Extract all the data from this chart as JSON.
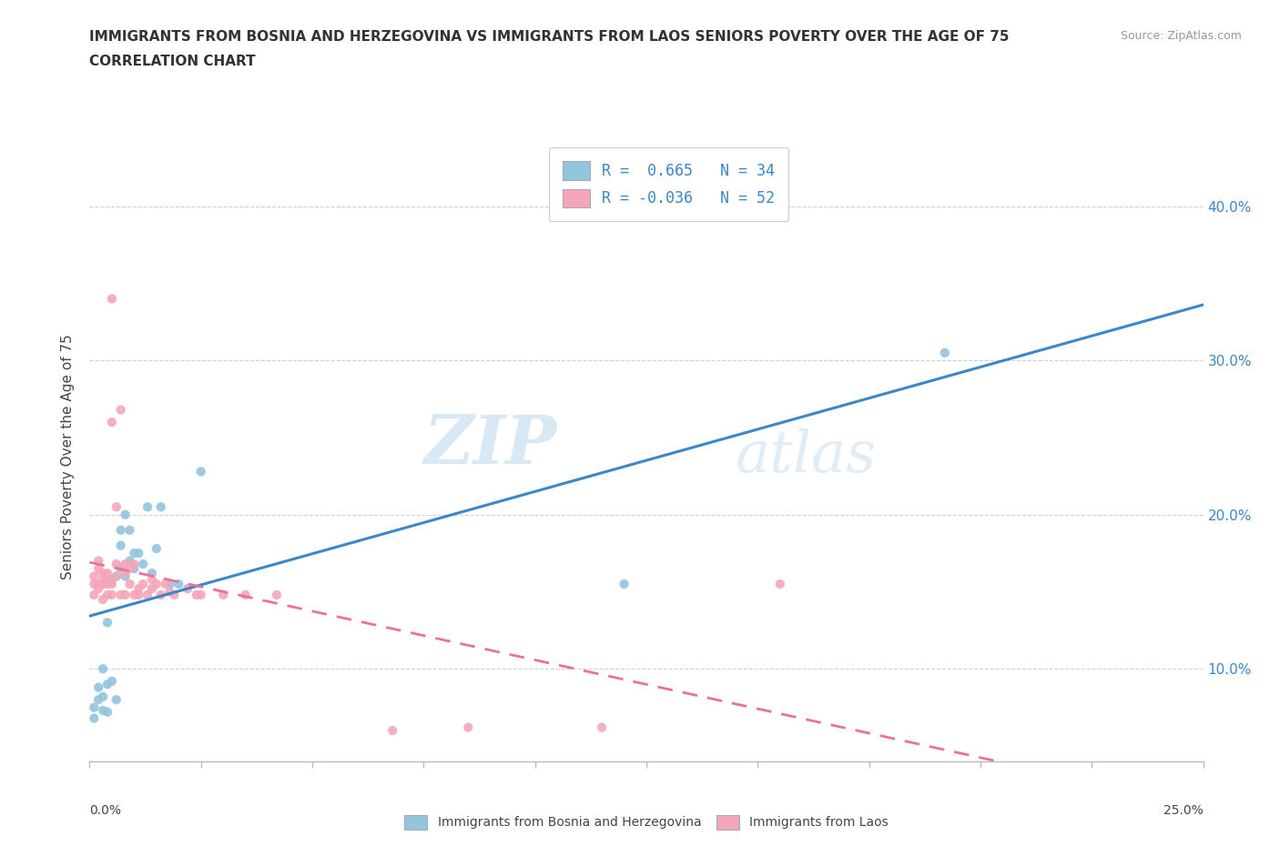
{
  "title_line1": "IMMIGRANTS FROM BOSNIA AND HERZEGOVINA VS IMMIGRANTS FROM LAOS SENIORS POVERTY OVER THE AGE OF 75",
  "title_line2": "CORRELATION CHART",
  "source": "Source: ZipAtlas.com",
  "ylabel": "Seniors Poverty Over the Age of 75",
  "xlim": [
    0.0,
    0.25
  ],
  "ylim": [
    0.04,
    0.435
  ],
  "ytick_vals": [
    0.1,
    0.2,
    0.3,
    0.4
  ],
  "color_bosnia": "#92c5de",
  "color_laos": "#f4a6b8",
  "color_bosnia_line": "#3a88c8",
  "color_laos_line": "#e8729a",
  "color_ytick": "#3a88c8",
  "watermark_zip": "ZIP",
  "watermark_atlas": "atlas",
  "bosnia_scatter": [
    [
      0.001,
      0.075
    ],
    [
      0.001,
      0.068
    ],
    [
      0.002,
      0.08
    ],
    [
      0.002,
      0.088
    ],
    [
      0.003,
      0.073
    ],
    [
      0.003,
      0.082
    ],
    [
      0.003,
      0.1
    ],
    [
      0.004,
      0.072
    ],
    [
      0.004,
      0.09
    ],
    [
      0.004,
      0.13
    ],
    [
      0.005,
      0.158
    ],
    [
      0.005,
      0.092
    ],
    [
      0.006,
      0.08
    ],
    [
      0.006,
      0.16
    ],
    [
      0.007,
      0.18
    ],
    [
      0.007,
      0.165
    ],
    [
      0.007,
      0.19
    ],
    [
      0.008,
      0.16
    ],
    [
      0.008,
      0.2
    ],
    [
      0.009,
      0.17
    ],
    [
      0.009,
      0.19
    ],
    [
      0.01,
      0.175
    ],
    [
      0.01,
      0.165
    ],
    [
      0.011,
      0.175
    ],
    [
      0.012,
      0.168
    ],
    [
      0.013,
      0.205
    ],
    [
      0.014,
      0.162
    ],
    [
      0.015,
      0.178
    ],
    [
      0.016,
      0.205
    ],
    [
      0.018,
      0.155
    ],
    [
      0.02,
      0.155
    ],
    [
      0.025,
      0.228
    ],
    [
      0.12,
      0.155
    ],
    [
      0.192,
      0.305
    ]
  ],
  "laos_scatter": [
    [
      0.001,
      0.155
    ],
    [
      0.001,
      0.148
    ],
    [
      0.001,
      0.16
    ],
    [
      0.002,
      0.155
    ],
    [
      0.002,
      0.152
    ],
    [
      0.002,
      0.165
    ],
    [
      0.002,
      0.17
    ],
    [
      0.003,
      0.145
    ],
    [
      0.003,
      0.158
    ],
    [
      0.003,
      0.162
    ],
    [
      0.003,
      0.155
    ],
    [
      0.004,
      0.148
    ],
    [
      0.004,
      0.158
    ],
    [
      0.004,
      0.162
    ],
    [
      0.004,
      0.155
    ],
    [
      0.005,
      0.155
    ],
    [
      0.005,
      0.148
    ],
    [
      0.005,
      0.26
    ],
    [
      0.005,
      0.34
    ],
    [
      0.006,
      0.16
    ],
    [
      0.006,
      0.168
    ],
    [
      0.006,
      0.205
    ],
    [
      0.007,
      0.148
    ],
    [
      0.007,
      0.268
    ],
    [
      0.008,
      0.162
    ],
    [
      0.008,
      0.148
    ],
    [
      0.008,
      0.168
    ],
    [
      0.009,
      0.165
    ],
    [
      0.009,
      0.155
    ],
    [
      0.01,
      0.148
    ],
    [
      0.01,
      0.168
    ],
    [
      0.011,
      0.148
    ],
    [
      0.011,
      0.152
    ],
    [
      0.012,
      0.155
    ],
    [
      0.013,
      0.148
    ],
    [
      0.014,
      0.158
    ],
    [
      0.014,
      0.152
    ],
    [
      0.015,
      0.155
    ],
    [
      0.016,
      0.148
    ],
    [
      0.017,
      0.155
    ],
    [
      0.018,
      0.15
    ],
    [
      0.019,
      0.148
    ],
    [
      0.022,
      0.152
    ],
    [
      0.024,
      0.148
    ],
    [
      0.025,
      0.148
    ],
    [
      0.03,
      0.148
    ],
    [
      0.035,
      0.148
    ],
    [
      0.042,
      0.148
    ],
    [
      0.068,
      0.06
    ],
    [
      0.085,
      0.062
    ],
    [
      0.115,
      0.062
    ],
    [
      0.155,
      0.155
    ]
  ],
  "legend1_text": "R =  0.665   N = 34",
  "legend2_text": "R = -0.036   N = 52"
}
